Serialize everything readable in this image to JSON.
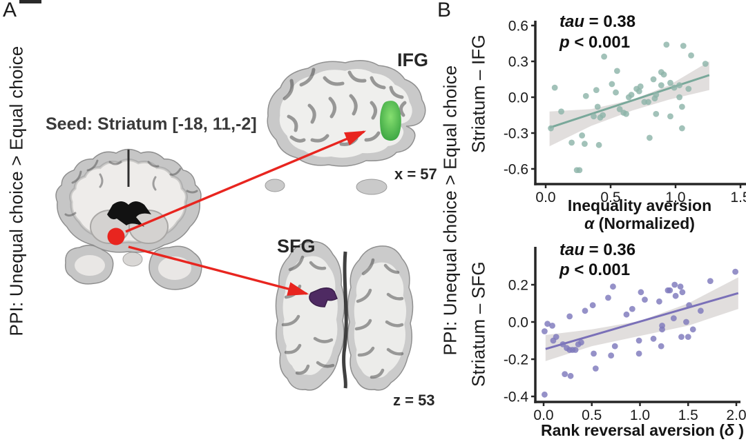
{
  "panelA": {
    "label": "A",
    "side_label": "PPI: Unequal choice > Equal choice",
    "seed_label": "Seed: Striatum [-18, 11,-2]",
    "ifg_label": "IFG",
    "ifg_coord": "x = 57",
    "sfg_label": "SFG",
    "sfg_coord": "z = 53",
    "colors": {
      "seed": "#e8251f",
      "arrow": "#e8251f",
      "ifg_blob": "#3fae49",
      "sfg_blob": "#4e2a62"
    }
  },
  "panelB": {
    "label": "B",
    "side_label": "PPI: Unequal choice > Equal choice"
  },
  "chart_data": [
    {
      "type": "scatter",
      "id": "ifg",
      "ylabel": "Striatum – IFG",
      "xlabel_line1": "Inequality aversion",
      "xlabel_sym": "α",
      "xlabel_rest": " (Normalized)",
      "annotation": {
        "tau_italic": "tau",
        "tau_text": " = 0.38",
        "p_italic": "p",
        "p_text": " < 0.001"
      },
      "xlim": [
        0,
        1.55
      ],
      "ylim": [
        -0.7,
        0.65
      ],
      "xticks": {
        "values": [
          0,
          0.5,
          1.0,
          1.5
        ],
        "labels": [
          "0.0",
          "0.5",
          "1.0",
          "1.5"
        ]
      },
      "yticks": {
        "values": [
          0.6,
          0.3,
          0.0,
          -0.3,
          -0.6
        ],
        "labels": [
          "0.6",
          "0.3",
          "0.0",
          "-0.3",
          "-0.6"
        ]
      },
      "point_color": "#8db5a9",
      "line_color": "#79a89a",
      "band_color": "#d9d6d4",
      "regression": {
        "x": [
          0.03,
          1.26
        ],
        "y": [
          -0.255,
          0.185
        ]
      },
      "band": {
        "x": [
          0.03,
          0.35,
          0.67,
          0.95,
          1.26
        ],
        "upper": [
          -0.12,
          -0.1,
          -0.02,
          0.1,
          0.3
        ],
        "lower": [
          -0.41,
          -0.24,
          -0.11,
          -0.02,
          0.06
        ]
      },
      "points": [
        [
          0.04,
          -0.26
        ],
        [
          0.07,
          0.08
        ],
        [
          0.12,
          -0.12
        ],
        [
          0.2,
          -0.38
        ],
        [
          0.24,
          -0.61
        ],
        [
          0.26,
          -0.61
        ],
        [
          0.28,
          -0.32
        ],
        [
          0.3,
          -0.39
        ],
        [
          0.31,
          0.01
        ],
        [
          0.37,
          -0.16
        ],
        [
          0.39,
          0.06
        ],
        [
          0.4,
          -0.08
        ],
        [
          0.41,
          -0.4
        ],
        [
          0.42,
          -0.17
        ],
        [
          0.44,
          -0.15
        ],
        [
          0.45,
          0.34
        ],
        [
          0.51,
          0.11
        ],
        [
          0.54,
          0.04
        ],
        [
          0.55,
          0.22
        ],
        [
          0.57,
          -0.1
        ],
        [
          0.6,
          -0.13
        ],
        [
          0.62,
          -0.14
        ],
        [
          0.64,
          0.0
        ],
        [
          0.66,
          0.02
        ],
        [
          0.7,
          0.07
        ],
        [
          0.72,
          0.05
        ],
        [
          0.73,
          0.09
        ],
        [
          0.76,
          -0.04
        ],
        [
          0.79,
          -0.04
        ],
        [
          0.8,
          -0.34
        ],
        [
          0.83,
          0.15
        ],
        [
          0.84,
          -0.01
        ],
        [
          0.85,
          0.02
        ],
        [
          0.85,
          -0.14
        ],
        [
          0.89,
          0.21
        ],
        [
          0.89,
          0.1
        ],
        [
          0.91,
          0.19
        ],
        [
          0.93,
          0.44
        ],
        [
          0.96,
          0.12
        ],
        [
          0.96,
          -0.16
        ],
        [
          0.99,
          0.08
        ],
        [
          1.03,
          0.1
        ],
        [
          1.03,
          0.0
        ],
        [
          1.05,
          -0.08
        ],
        [
          1.05,
          -0.26
        ],
        [
          1.06,
          0.43
        ],
        [
          1.1,
          0.07
        ],
        [
          1.12,
          0.35
        ],
        [
          1.23,
          0.28
        ]
      ]
    },
    {
      "type": "scatter",
      "id": "sfg",
      "ylabel": "Striatum – SFG",
      "xlabel_pre": "Rank reversal aversion (",
      "xlabel_sym": "δ",
      "xlabel_post": " )",
      "annotation": {
        "tau_italic": "tau",
        "tau_text": " = 0.36",
        "p_italic": "p",
        "p_text": " < 0.001"
      },
      "xlim": [
        0,
        2.05
      ],
      "ylim": [
        -0.45,
        0.3
      ],
      "xticks": {
        "values": [
          0,
          0.5,
          1.0,
          1.5,
          2.0
        ],
        "labels": [
          "0.0",
          "0.5",
          "1.0",
          "1.5",
          "2.0"
        ]
      },
      "yticks": {
        "values": [
          0.2,
          0.0,
          -0.2,
          -0.4
        ],
        "labels": [
          "0.2",
          "0.0",
          "-0.2",
          "-0.4"
        ]
      },
      "point_color": "#7e79bc",
      "line_color": "#7a70b8",
      "band_color": "#d9d6d4",
      "regression": {
        "x": [
          0.02,
          2.02
        ],
        "y": [
          -0.145,
          0.155
        ]
      },
      "band": {
        "x": [
          0.02,
          0.5,
          1.0,
          1.5,
          2.02
        ],
        "upper": [
          -0.07,
          -0.04,
          0.005,
          0.1,
          0.24
        ],
        "lower": [
          -0.21,
          -0.13,
          -0.075,
          -0.02,
          0.07
        ]
      },
      "points": [
        [
          0.01,
          -0.39
        ],
        [
          0.01,
          -0.05
        ],
        [
          0.04,
          -0.01
        ],
        [
          0.09,
          -0.02
        ],
        [
          0.1,
          -0.1
        ],
        [
          0.13,
          -0.08
        ],
        [
          0.2,
          -0.12
        ],
        [
          0.22,
          -0.28
        ],
        [
          0.24,
          -0.14
        ],
        [
          0.27,
          0.03
        ],
        [
          0.27,
          -0.15
        ],
        [
          0.28,
          -0.29
        ],
        [
          0.3,
          -0.15
        ],
        [
          0.33,
          -0.15
        ],
        [
          0.36,
          -0.12
        ],
        [
          0.39,
          -0.11
        ],
        [
          0.43,
          0.06
        ],
        [
          0.51,
          0.09
        ],
        [
          0.52,
          -0.17
        ],
        [
          0.54,
          -0.25
        ],
        [
          0.67,
          0.13
        ],
        [
          0.7,
          -0.18
        ],
        [
          0.72,
          0.19
        ],
        [
          0.74,
          -0.13
        ],
        [
          0.86,
          0.04
        ],
        [
          0.92,
          0.07
        ],
        [
          0.99,
          -0.1
        ],
        [
          0.99,
          -0.17
        ],
        [
          1.01,
          0.16
        ],
        [
          1.05,
          0.12
        ],
        [
          1.14,
          -0.09
        ],
        [
          1.2,
          0.11
        ],
        [
          1.22,
          -0.13
        ],
        [
          1.23,
          -0.02
        ],
        [
          1.23,
          -0.04
        ],
        [
          1.29,
          0.17
        ],
        [
          1.31,
          0.17
        ],
        [
          1.35,
          0.02
        ],
        [
          1.36,
          0.2
        ],
        [
          1.37,
          0.14
        ],
        [
          1.42,
          0.19
        ],
        [
          1.43,
          -0.08
        ],
        [
          1.44,
          0.16
        ],
        [
          1.48,
          0.0
        ],
        [
          1.5,
          -0.08
        ],
        [
          1.51,
          0.09
        ],
        [
          1.55,
          -0.04
        ],
        [
          1.63,
          0.06
        ],
        [
          1.73,
          0.22
        ],
        [
          1.99,
          0.27
        ]
      ]
    }
  ]
}
